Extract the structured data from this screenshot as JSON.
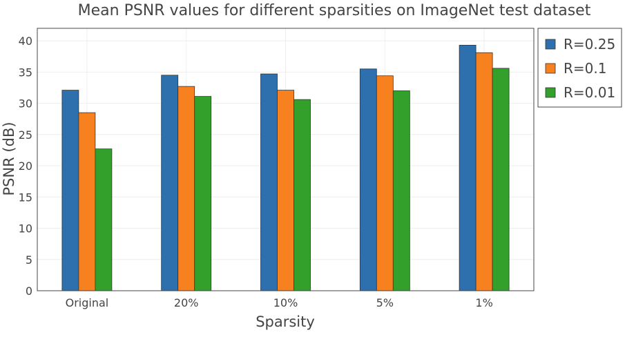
{
  "chart_data": {
    "type": "bar",
    "title": "Mean PSNR values for different sparsities on ImageNet test dataset",
    "xlabel": "Sparsity",
    "ylabel": "PSNR (dB)",
    "categories": [
      "Original",
      "20%",
      "10%",
      "5%",
      "1%"
    ],
    "ylim": [
      0,
      42
    ],
    "yticks": [
      0,
      5,
      10,
      15,
      20,
      25,
      30,
      35,
      40
    ],
    "grid": true,
    "legend_position": "top-right, outside plot area",
    "series": [
      {
        "name": "R=0.25",
        "color": "#2e6fad",
        "values": [
          32.1,
          34.5,
          34.7,
          35.5,
          39.3
        ]
      },
      {
        "name": "R=0.1",
        "color": "#f8811f",
        "values": [
          28.5,
          32.7,
          32.1,
          34.4,
          38.1
        ]
      },
      {
        "name": "R=0.01",
        "color": "#33a02c",
        "values": [
          22.7,
          31.1,
          30.6,
          32.0,
          35.6
        ]
      }
    ]
  }
}
